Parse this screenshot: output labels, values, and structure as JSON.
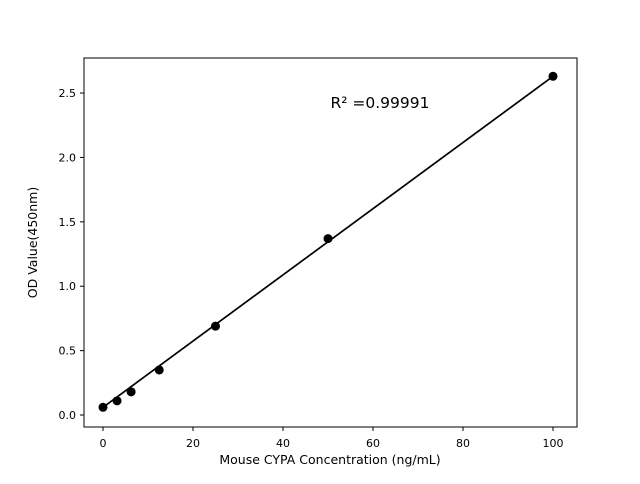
{
  "figure": {
    "background": "#ffffff"
  },
  "chart_data": {
    "type": "scatter",
    "title": "",
    "xlabel": "Mouse CYPA Concentration (ng/mL)",
    "ylabel": "OD Value(450nm)",
    "annotation": "R² =0.99991",
    "x": [
      0,
      3.125,
      6.25,
      12.5,
      25,
      50,
      100
    ],
    "y": [
      0.06,
      0.11,
      0.18,
      0.35,
      0.69,
      1.37,
      2.63
    ],
    "fit_line": {
      "x1": 0,
      "y1": 0.06,
      "x2": 100,
      "y2": 2.63
    },
    "xticks": [
      0,
      20,
      40,
      60,
      80,
      100
    ],
    "xtick_labels": [
      "0",
      "20",
      "40",
      "60",
      "80",
      "100"
    ],
    "yticks": [
      0.0,
      0.5,
      1.0,
      1.5,
      2.0,
      2.5
    ],
    "ytick_labels": [
      "0.0",
      "0.5",
      "1.0",
      "1.5",
      "2.0",
      "2.5"
    ],
    "xlim": [
      -4.22,
      105.33
    ],
    "ylim": [
      -0.093,
      2.772
    ],
    "grid": false,
    "legend": null,
    "colors": {
      "marker": "#000000",
      "line": "#000000",
      "axes": "#000000",
      "background": "#ffffff"
    }
  }
}
